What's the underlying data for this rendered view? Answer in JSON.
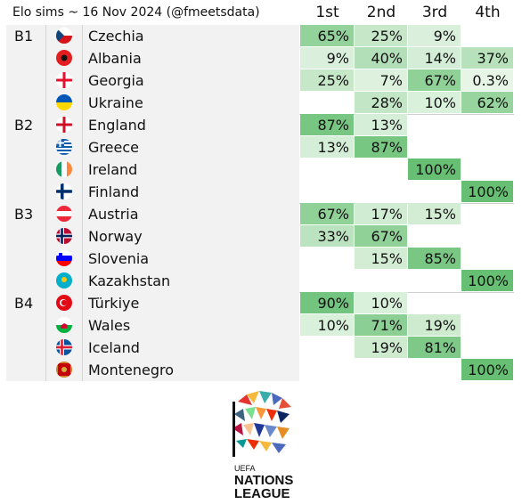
{
  "title": "Elo sims ~ 16 Nov 2024 (@fmeetsdata)",
  "columns": [
    "1st",
    "2nd",
    "3rd",
    "4th"
  ],
  "colors": {
    "scale_low": "#e6f5e6",
    "scale_high": "#66bf72",
    "row_shade": "#f2f2f2"
  },
  "logo_text": [
    "UEFA",
    "NATIONS",
    "LEAGUE"
  ],
  "chart_data": {
    "type": "table",
    "groups": [
      {
        "name": "B1",
        "teams": [
          {
            "name": "Czechia",
            "flag": "czechia-flag",
            "values": [
              "65%",
              "25%",
              "9%",
              ""
            ]
          },
          {
            "name": "Albania",
            "flag": "albania-flag",
            "values": [
              "9%",
              "40%",
              "14%",
              "37%"
            ]
          },
          {
            "name": "Georgia",
            "flag": "georgia-flag",
            "values": [
              "25%",
              "7%",
              "67%",
              "0.3%"
            ]
          },
          {
            "name": "Ukraine",
            "flag": "ukraine-flag",
            "values": [
              "",
              "28%",
              "10%",
              "62%"
            ]
          }
        ]
      },
      {
        "name": "B2",
        "teams": [
          {
            "name": "England",
            "flag": "england-flag",
            "values": [
              "87%",
              "13%",
              "",
              ""
            ]
          },
          {
            "name": "Greece",
            "flag": "greece-flag",
            "values": [
              "13%",
              "87%",
              "",
              ""
            ]
          },
          {
            "name": "Ireland",
            "flag": "ireland-flag",
            "values": [
              "",
              "",
              "100%",
              ""
            ]
          },
          {
            "name": "Finland",
            "flag": "finland-flag",
            "values": [
              "",
              "",
              "",
              "100%"
            ]
          }
        ]
      },
      {
        "name": "B3",
        "teams": [
          {
            "name": "Austria",
            "flag": "austria-flag",
            "values": [
              "67%",
              "17%",
              "15%",
              ""
            ]
          },
          {
            "name": "Norway",
            "flag": "norway-flag",
            "values": [
              "33%",
              "67%",
              "",
              ""
            ]
          },
          {
            "name": "Slovenia",
            "flag": "slovenia-flag",
            "values": [
              "",
              "15%",
              "85%",
              ""
            ]
          },
          {
            "name": "Kazakhstan",
            "flag": "kazakhstan-flag",
            "values": [
              "",
              "",
              "",
              "100%"
            ]
          }
        ]
      },
      {
        "name": "B4",
        "teams": [
          {
            "name": "Türkiye",
            "flag": "turkiye-flag",
            "values": [
              "90%",
              "10%",
              "",
              ""
            ]
          },
          {
            "name": "Wales",
            "flag": "wales-flag",
            "values": [
              "10%",
              "71%",
              "19%",
              ""
            ]
          },
          {
            "name": "Iceland",
            "flag": "iceland-flag",
            "values": [
              "",
              "19%",
              "81%",
              ""
            ]
          },
          {
            "name": "Montenegro",
            "flag": "montenegro-flag",
            "values": [
              "",
              "",
              "",
              "100%"
            ]
          }
        ]
      }
    ]
  }
}
